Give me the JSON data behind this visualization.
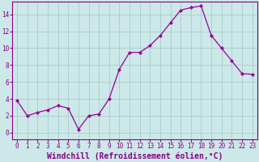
{
  "x": [
    0,
    1,
    2,
    3,
    4,
    5,
    6,
    7,
    8,
    9,
    10,
    11,
    12,
    13,
    14,
    15,
    16,
    17,
    18,
    19,
    20,
    21,
    22,
    23
  ],
  "y": [
    3.8,
    2.0,
    2.4,
    2.7,
    3.2,
    2.9,
    0.4,
    2.0,
    2.2,
    4.0,
    7.5,
    9.5,
    9.5,
    10.3,
    11.5,
    13.0,
    14.5,
    14.8,
    15.0,
    11.5,
    10.0,
    8.5,
    7.0,
    6.9
  ],
  "line_color": "#990099",
  "marker": "D",
  "marker_size": 2.0,
  "background_color": "#cce8e8",
  "grid_color": "#aacccc",
  "xlabel": "Windchill (Refroidissement éolien,°C)",
  "xlabel_fontsize": 7,
  "ylabel": "",
  "xlim": [
    -0.5,
    23.5
  ],
  "ylim": [
    -0.8,
    15.5
  ],
  "yticks": [
    0,
    2,
    4,
    6,
    8,
    10,
    12,
    14
  ],
  "xticks": [
    0,
    1,
    2,
    3,
    4,
    5,
    6,
    7,
    8,
    9,
    10,
    11,
    12,
    13,
    14,
    15,
    16,
    17,
    18,
    19,
    20,
    21,
    22,
    23
  ],
  "tick_color": "#880088",
  "tick_fontsize": 5.5,
  "spine_color": "#880088"
}
